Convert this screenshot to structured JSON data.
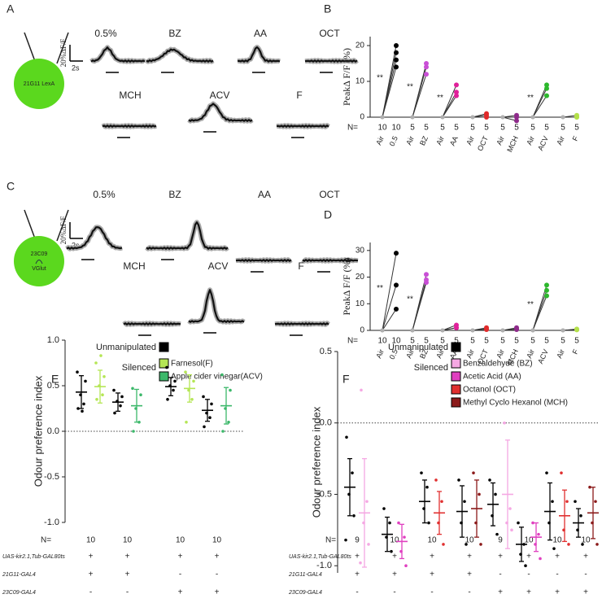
{
  "panels": [
    {
      "letter": "A",
      "genotype": [
        "21G11 LexA"
      ],
      "scale_y": "20%ΔF/F",
      "scale_x": "2s",
      "odours": [
        "0.5%",
        "BZ",
        "AA",
        "OCT",
        "MCH",
        "ACV",
        "F"
      ]
    },
    {
      "letter": "C",
      "genotype": [
        "23C09",
        "VGlut"
      ],
      "scale_y": "20%ΔF/F",
      "scale_x": "2s",
      "odours": [
        "0.5%",
        "BZ",
        "AA",
        "OCT",
        "MCH",
        "ACV",
        "F"
      ]
    }
  ],
  "chart_data": [
    {
      "type": "paired",
      "letter": "B",
      "ylabel": "PeakΔ F/F (%)",
      "ylim": [
        0,
        22.5
      ],
      "yticks": [
        0,
        10,
        20
      ],
      "n_label": "N=",
      "pairs": [
        {
          "labels": [
            "Air",
            "0.5"
          ],
          "colors": [
            "#b0b0b0",
            "#000000"
          ],
          "n": [
            10,
            10
          ],
          "air": [
            0,
            0,
            0,
            0
          ],
          "odour": [
            14,
            16,
            18,
            20
          ],
          "stars": "**"
        },
        {
          "labels": [
            "Air",
            "BZ"
          ],
          "colors": [
            "#b0b0b0",
            "#c94fd6"
          ],
          "n": [
            5,
            5
          ],
          "air": [
            0,
            0,
            0
          ],
          "odour": [
            12,
            14,
            15
          ],
          "stars": "**"
        },
        {
          "labels": [
            "Air",
            "AA"
          ],
          "colors": [
            "#b0b0b0",
            "#e0209a"
          ],
          "n": [
            5,
            5
          ],
          "air": [
            0,
            0,
            0
          ],
          "odour": [
            6,
            7,
            9
          ],
          "stars": "**"
        },
        {
          "labels": [
            "Air",
            "OCT"
          ],
          "colors": [
            "#b0b0b0",
            "#e02a2a"
          ],
          "n": [
            5,
            5
          ],
          "air": [
            0,
            0,
            0
          ],
          "odour": [
            0.5,
            1,
            0
          ]
        },
        {
          "labels": [
            "Air",
            "MCH"
          ],
          "colors": [
            "#b0b0b0",
            "#8e2a8a"
          ],
          "n": [
            5,
            5
          ],
          "air": [
            0,
            0,
            0
          ],
          "odour": [
            -1,
            0,
            0.5
          ]
        },
        {
          "labels": [
            "Air",
            "ACV"
          ],
          "colors": [
            "#b0b0b0",
            "#2db82d"
          ],
          "n": [
            5,
            5
          ],
          "air": [
            0,
            0,
            0
          ],
          "odour": [
            6,
            8,
            9
          ],
          "stars": "**"
        },
        {
          "labels": [
            "Air",
            "F"
          ],
          "colors": [
            "#b0b0b0",
            "#b4e04a"
          ],
          "n": [
            5,
            5
          ],
          "air": [
            0,
            0,
            0
          ],
          "odour": [
            0,
            0.5,
            0
          ]
        }
      ]
    },
    {
      "type": "paired",
      "letter": "D",
      "ylabel": "PeakΔ F/F (%)",
      "ylim": [
        0,
        33
      ],
      "yticks": [
        0,
        10,
        20,
        30
      ],
      "n_label": "N=",
      "pairs": [
        {
          "labels": [
            "Air",
            "0.5"
          ],
          "colors": [
            "#b0b0b0",
            "#000000"
          ],
          "n": [
            10,
            10
          ],
          "air": [
            0,
            0,
            0
          ],
          "odour": [
            8,
            17,
            29
          ],
          "stars": "**"
        },
        {
          "labels": [
            "Air",
            "BZ"
          ],
          "colors": [
            "#b0b0b0",
            "#c94fd6"
          ],
          "n": [
            5,
            5
          ],
          "air": [
            0,
            0,
            0
          ],
          "odour": [
            18,
            19,
            21
          ],
          "stars": "**"
        },
        {
          "labels": [
            "Air",
            "AA"
          ],
          "colors": [
            "#b0b0b0",
            "#e0209a"
          ],
          "n": [
            5,
            5
          ],
          "air": [
            0,
            0,
            0
          ],
          "odour": [
            1,
            1,
            2
          ]
        },
        {
          "labels": [
            "Air",
            "OCT"
          ],
          "colors": [
            "#b0b0b0",
            "#e02a2a"
          ],
          "n": [
            5,
            5
          ],
          "air": [
            0,
            0,
            0
          ],
          "odour": [
            0.5,
            1,
            0.3
          ]
        },
        {
          "labels": [
            "Air",
            "MCH"
          ],
          "colors": [
            "#b0b0b0",
            "#8e2a8a"
          ],
          "n": [
            5,
            5
          ],
          "air": [
            0,
            0,
            0
          ],
          "odour": [
            0.5,
            1,
            0.3
          ]
        },
        {
          "labels": [
            "Air",
            "ACV"
          ],
          "colors": [
            "#b0b0b0",
            "#2db82d"
          ],
          "n": [
            5,
            5
          ],
          "air": [
            0,
            0,
            0
          ],
          "odour": [
            13,
            15,
            17
          ],
          "stars": "**"
        },
        {
          "labels": [
            "Air",
            "F"
          ],
          "colors": [
            "#b0b0b0",
            "#b4e04a"
          ],
          "n": [
            5,
            5
          ],
          "air": [
            0,
            0,
            0
          ],
          "odour": [
            0.5,
            0.3,
            0.2
          ]
        }
      ]
    },
    {
      "type": "dot-sd",
      "letter": "E",
      "ylabel": "Odour preference index",
      "ylim": [
        -1,
        1
      ],
      "yticks": [
        {
          "value": 1,
          "label": "1.0"
        },
        {
          "value": 0.5,
          "label": "0.5"
        },
        {
          "value": 0,
          "label": "0.0"
        },
        {
          "value": -0.5,
          "label": "-0.5"
        },
        {
          "value": -1,
          "label": "-1.0"
        }
      ],
      "zero_line": true,
      "unmanipulated": {
        "name": "Unmanipulated",
        "color": "#000000"
      },
      "silenced_label": "Silenced",
      "silenced": [
        {
          "name": "Farnesol(F)",
          "color": "#b5e655"
        },
        {
          "name": "Apple cider vinegar(ACV)",
          "color": "#3cb86a"
        }
      ],
      "n_label": "N=",
      "rows": [
        "UAS-kir2.1,Tub-GAL80ts",
        "21G11-GAL4",
        "23C09-GAL4"
      ],
      "groups": [
        {
          "n": 10,
          "genotype": [
            "+",
            "+",
            "-"
          ],
          "columns": [
            {
              "color": "#000000",
              "mean": 0.43,
              "sd": 0.18,
              "points": [
                0.25,
                0.3,
                0.4,
                0.55,
                0.65,
                0.22
              ]
            },
            {
              "color": "#b5e655",
              "mean": 0.49,
              "sd": 0.18,
              "points": [
                0.35,
                0.4,
                0.5,
                0.6,
                0.75,
                0.83
              ]
            }
          ]
        },
        {
          "n": 10,
          "genotype": [
            "+",
            "+",
            "-"
          ],
          "columns": [
            {
              "color": "#000000",
              "mean": 0.32,
              "sd": 0.1,
              "points": [
                0.2,
                0.28,
                0.33,
                0.38,
                0.45
              ]
            },
            {
              "color": "#3cb86a",
              "mean": 0.28,
              "sd": 0.18,
              "points": [
                0,
                0.1,
                0.25,
                0.4,
                0.47
              ]
            }
          ]
        },
        {
          "n": 10,
          "genotype": [
            "+",
            "-",
            "+"
          ],
          "columns": [
            {
              "color": "#000000",
              "mean": 0.49,
              "sd": 0.1,
              "points": [
                0.35,
                0.45,
                0.5,
                0.55,
                0.7
              ]
            },
            {
              "color": "#b5e655",
              "mean": 0.47,
              "sd": 0.15,
              "points": [
                0.1,
                0.35,
                0.45,
                0.55,
                0.65
              ]
            }
          ]
        },
        {
          "n": 10,
          "genotype": [
            "+",
            "-",
            "+"
          ],
          "columns": [
            {
              "color": "#000000",
              "mean": 0.23,
              "sd": 0.12,
              "points": [
                0.05,
                0.15,
                0.2,
                0.3,
                0.38
              ]
            },
            {
              "color": "#3cb86a",
              "mean": 0.28,
              "sd": 0.2,
              "points": [
                0,
                0.1,
                0.25,
                0.45,
                0.62
              ]
            }
          ]
        }
      ]
    },
    {
      "type": "dot-sd",
      "letter": "F",
      "ylabel": "Odour preference index",
      "ylim": [
        -1.05,
        0.5
      ],
      "yticks": [
        {
          "value": 0.5,
          "label": "0.5"
        },
        {
          "value": 0,
          "label": "0.0"
        },
        {
          "value": -0.5,
          "label": "-0.5"
        },
        {
          "value": -1,
          "label": "-1.0"
        }
      ],
      "zero_line": true,
      "unmanipulated": {
        "name": "Unmanipulated",
        "color": "#000000"
      },
      "silenced_label": "Silenced",
      "silenced": [
        {
          "name": "Benzaldehyde (BZ)",
          "color": "#f5a8e3"
        },
        {
          "name": "Acetic Acid (AA)",
          "color": "#e040c0"
        },
        {
          "name": "Octanol (OCT)",
          "color": "#e03030"
        },
        {
          "name": "Methyl Cyclo Hexanol (MCH)",
          "color": "#8b1a1a"
        }
      ],
      "n_label": "N=",
      "rows": [
        "UAS-kir2.1,Tub-GAL80ts",
        "21G11-GAL4",
        "23C09-GAL4"
      ],
      "groups": [
        {
          "n": 9,
          "genotype": [
            "+",
            "+",
            "-"
          ],
          "columns": [
            {
              "color": "#000000",
              "mean": -0.45,
              "sd": 0.2,
              "points": [
                -0.1,
                -0.35,
                -0.5,
                -0.65,
                -0.82
              ]
            },
            {
              "color": "#f5a8e3",
              "mean": -0.63,
              "sd": 0.38,
              "points": [
                0.23,
                -0.55,
                -0.7,
                -0.85,
                -0.98
              ]
            }
          ]
        },
        {
          "n": 10,
          "genotype": [
            "+",
            "+",
            "-"
          ],
          "columns": [
            {
              "color": "#000000",
              "mean": -0.78,
              "sd": 0.12,
              "points": [
                -0.6,
                -0.7,
                -0.8,
                -0.9
              ]
            },
            {
              "color": "#e040c0",
              "mean": -0.83,
              "sd": 0.12,
              "points": [
                -0.7,
                -0.8,
                -0.9,
                -1
              ]
            }
          ]
        },
        {
          "n": 10,
          "genotype": [
            "+",
            "+",
            "-"
          ],
          "columns": [
            {
              "color": "#000000",
              "mean": -0.55,
              "sd": 0.15,
              "points": [
                -0.35,
                -0.45,
                -0.6,
                -0.7
              ]
            },
            {
              "color": "#e03030",
              "mean": -0.63,
              "sd": 0.15,
              "points": [
                -0.4,
                -0.55,
                -0.7,
                -0.85
              ]
            }
          ]
        },
        {
          "n": 10,
          "genotype": [
            "+",
            "+",
            "-"
          ],
          "columns": [
            {
              "color": "#000000",
              "mean": -0.62,
              "sd": 0.18,
              "points": [
                -0.4,
                -0.55,
                -0.7,
                -0.85
              ]
            },
            {
              "color": "#8b1a1a",
              "mean": -0.6,
              "sd": 0.2,
              "points": [
                -0.35,
                -0.5,
                -0.7,
                -0.85
              ]
            }
          ]
        },
        {
          "n": 9,
          "genotype": [
            "+",
            "-",
            "+"
          ],
          "columns": [
            {
              "color": "#000000",
              "mean": -0.57,
              "sd": 0.15,
              "points": [
                -0.4,
                -0.5,
                -0.65,
                -0.78
              ]
            },
            {
              "color": "#f5a8e3",
              "mean": -0.5,
              "sd": 0.38,
              "points": [
                0,
                -0.6,
                -0.7,
                -0.75
              ]
            }
          ]
        },
        {
          "n": 10,
          "genotype": [
            "+",
            "-",
            "+"
          ],
          "columns": [
            {
              "color": "#000000",
              "mean": -0.85,
              "sd": 0.12,
              "points": [
                -0.7,
                -0.85,
                -0.92,
                -1
              ]
            },
            {
              "color": "#e040c0",
              "mean": -0.8,
              "sd": 0.1,
              "points": [
                -0.7,
                -0.78,
                -0.85,
                -0.95
              ]
            }
          ]
        },
        {
          "n": 10,
          "genotype": [
            "+",
            "-",
            "+"
          ],
          "columns": [
            {
              "color": "#000000",
              "mean": -0.62,
              "sd": 0.2,
              "points": [
                -0.35,
                -0.55,
                -0.7,
                -0.88
              ]
            },
            {
              "color": "#e03030",
              "mean": -0.65,
              "sd": 0.18,
              "points": [
                -0.35,
                -0.55,
                -0.75,
                -0.85
              ]
            }
          ]
        },
        {
          "n": 10,
          "genotype": [
            "+",
            "-",
            "+"
          ],
          "columns": [
            {
              "color": "#000000",
              "mean": -0.7,
              "sd": 0.1,
              "points": [
                -0.55,
                -0.65,
                -0.75,
                -0.85
              ]
            },
            {
              "color": "#8b1a1a",
              "mean": -0.63,
              "sd": 0.18,
              "points": [
                -0.45,
                -0.55,
                -0.7,
                -0.85
              ]
            }
          ]
        }
      ]
    }
  ]
}
